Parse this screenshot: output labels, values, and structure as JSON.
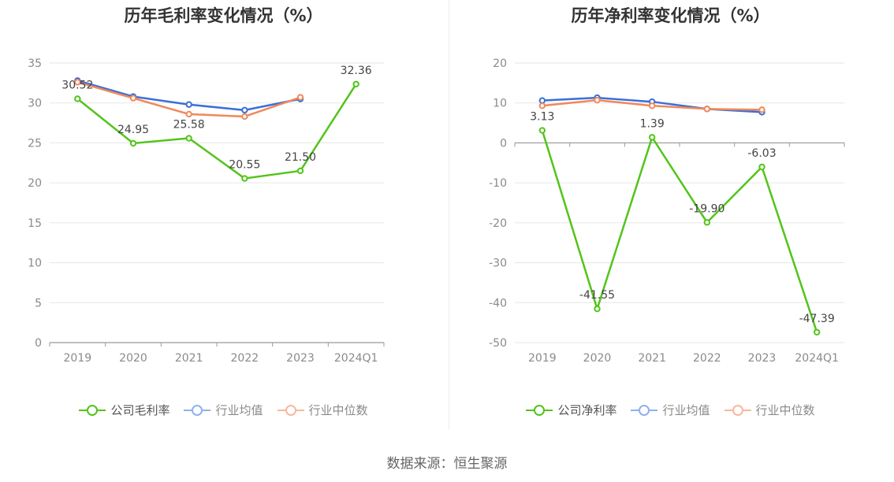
{
  "source": "数据来源：恒生聚源",
  "chart_data": [
    {
      "type": "line",
      "title": "历年毛利率变化情况（%）",
      "categories": [
        "2019",
        "2020",
        "2021",
        "2022",
        "2023",
        "2024Q1"
      ],
      "ylim": [
        0,
        35
      ],
      "yticks": [
        0,
        5,
        10,
        15,
        20,
        25,
        30,
        35
      ],
      "grid": true,
      "legend_position": "bottom",
      "series": [
        {
          "name": "公司毛利率",
          "color": "#52c41a",
          "values": [
            30.52,
            24.95,
            25.58,
            20.55,
            21.5,
            32.36
          ],
          "labels": [
            "30.52",
            "24.95",
            "25.58",
            "20.55",
            "21.50",
            "32.36"
          ]
        },
        {
          "name": "行业均值",
          "color": "#3a6fd8",
          "values": [
            32.8,
            30.8,
            29.8,
            29.1,
            30.5,
            null
          ]
        },
        {
          "name": "行业中位数",
          "color": "#f0885a",
          "values": [
            32.6,
            30.6,
            28.6,
            28.3,
            30.7,
            null
          ]
        }
      ]
    },
    {
      "type": "line",
      "title": "历年净利率变化情况（%）",
      "categories": [
        "2019",
        "2020",
        "2021",
        "2022",
        "2023",
        "2024Q1"
      ],
      "ylim": [
        -50,
        20
      ],
      "yticks": [
        -50,
        -40,
        -30,
        -20,
        -10,
        0,
        10,
        20
      ],
      "grid": true,
      "legend_position": "bottom",
      "series": [
        {
          "name": "公司净利率",
          "color": "#52c41a",
          "values": [
            3.13,
            -41.55,
            1.39,
            -19.9,
            -6.03,
            -47.39
          ],
          "labels": [
            "3.13",
            "-41.55",
            "1.39",
            "-19.90",
            "-6.03",
            "-47.39"
          ]
        },
        {
          "name": "行业均值",
          "color": "#3a6fd8",
          "values": [
            10.6,
            11.3,
            10.3,
            8.5,
            7.7,
            null
          ]
        },
        {
          "name": "行业中位数",
          "color": "#f0885a",
          "values": [
            9.3,
            10.7,
            9.3,
            8.5,
            8.3,
            null
          ]
        }
      ]
    }
  ]
}
